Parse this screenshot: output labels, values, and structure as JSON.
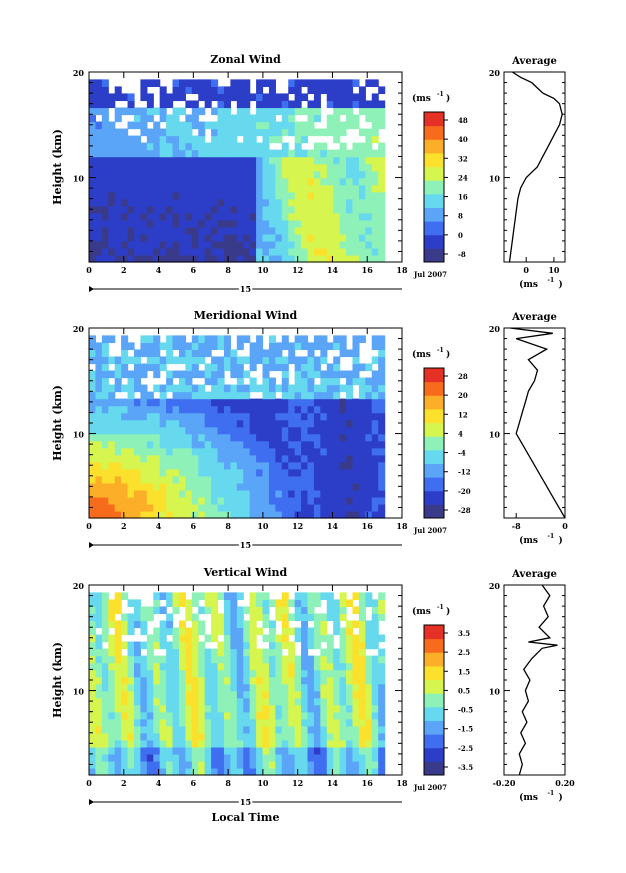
{
  "chart_data": [
    {
      "type": "heatmap",
      "title": "Zonal Wind",
      "ylabel": "Height (km)",
      "unit_label": "(ms",
      "unit_exp": "-1",
      "xlim": [
        0,
        18
      ],
      "ylim": [
        2,
        20
      ],
      "x_ticks": [
        "0",
        "2",
        "4",
        "6",
        "8",
        "10",
        "12",
        "14",
        "16",
        "18"
      ],
      "y_ticks": [
        "10",
        "20"
      ],
      "day_label": "15",
      "date_label": "Jul 2007",
      "colorbar_ticks": [
        "48",
        "40",
        "32",
        "24",
        "16",
        "8",
        "0",
        "-8"
      ],
      "colorbar_range": [
        -8,
        52
      ],
      "contour_level": 0,
      "profile": {
        "title": "Average",
        "x_ticks": [
          "0",
          "10"
        ],
        "xlim": [
          -8,
          14
        ],
        "y_ticks": [
          "10",
          "20"
        ],
        "xlabel": "(ms",
        "xlabel_exp": "-1",
        "points": [
          [
            -6,
            2
          ],
          [
            -5.5,
            3
          ],
          [
            -5,
            4
          ],
          [
            -4.5,
            5
          ],
          [
            -4,
            6
          ],
          [
            -3.5,
            7
          ],
          [
            -3,
            8
          ],
          [
            -2,
            9
          ],
          [
            0,
            10
          ],
          [
            2,
            10.5
          ],
          [
            4,
            11
          ],
          [
            6,
            12
          ],
          [
            8,
            13
          ],
          [
            10,
            14
          ],
          [
            12,
            15
          ],
          [
            13,
            16
          ],
          [
            12,
            17
          ],
          [
            10,
            17.5
          ],
          [
            6,
            18
          ],
          [
            2,
            19
          ],
          [
            -2,
            19.5
          ],
          [
            -5,
            20
          ]
        ]
      }
    },
    {
      "type": "heatmap",
      "title": "Meridional Wind",
      "ylabel": "Height (km)",
      "unit_label": "(ms",
      "unit_exp": "-1",
      "xlim": [
        0,
        18
      ],
      "ylim": [
        2,
        20
      ],
      "x_ticks": [
        "0",
        "2",
        "4",
        "6",
        "8",
        "10",
        "12",
        "14",
        "16",
        "18"
      ],
      "y_ticks": [
        "10",
        "20"
      ],
      "day_label": "15",
      "date_label": "Jul 2007",
      "colorbar_ticks": [
        "28",
        "20",
        "12",
        "4",
        "-4",
        "-12",
        "-20",
        "-28"
      ],
      "colorbar_range": [
        -28,
        28
      ],
      "contour_level": 0,
      "profile": {
        "title": "Average",
        "x_ticks": [
          "-8",
          "0"
        ],
        "xlim": [
          -10,
          0
        ],
        "y_ticks": [
          "10",
          "20"
        ],
        "xlabel": "(ms",
        "xlabel_exp": "-1",
        "points": [
          [
            0,
            2
          ],
          [
            -1,
            3
          ],
          [
            -2,
            4
          ],
          [
            -3,
            5
          ],
          [
            -4,
            6
          ],
          [
            -5,
            7
          ],
          [
            -6,
            8
          ],
          [
            -7,
            9
          ],
          [
            -8,
            10
          ],
          [
            -7.5,
            11
          ],
          [
            -7,
            12
          ],
          [
            -6.5,
            13
          ],
          [
            -6,
            14
          ],
          [
            -5,
            15
          ],
          [
            -4.5,
            16
          ],
          [
            -6,
            17
          ],
          [
            -3,
            18
          ],
          [
            -8,
            19
          ],
          [
            -2,
            19.5
          ],
          [
            -9,
            20
          ]
        ]
      }
    },
    {
      "type": "heatmap",
      "title": "Vertical Wind",
      "ylabel": "Height (km)",
      "xlabel": "Local Time",
      "unit_label": "(ms",
      "unit_exp": "-1",
      "xlim": [
        0,
        18
      ],
      "ylim": [
        2,
        20
      ],
      "x_ticks": [
        "0",
        "2",
        "4",
        "6",
        "8",
        "10",
        "12",
        "14",
        "16",
        "18"
      ],
      "y_ticks": [
        "10",
        "20"
      ],
      "day_label": "15",
      "date_label": "Jul 2007",
      "colorbar_ticks": [
        "3.5",
        "2.5",
        "1.5",
        "0.5",
        "-0.5",
        "-1.5",
        "-2.5",
        "-3.5"
      ],
      "colorbar_range": [
        -4,
        4
      ],
      "profile": {
        "title": "Average",
        "x_ticks": [
          "-0.20",
          "0.20"
        ],
        "xlim": [
          -0.2,
          0.2
        ],
        "y_ticks": [
          "10",
          "20"
        ],
        "xlabel": "(ms",
        "xlabel_exp": "-1",
        "points": [
          [
            -0.1,
            2
          ],
          [
            -0.08,
            3
          ],
          [
            -0.1,
            4
          ],
          [
            -0.06,
            5
          ],
          [
            -0.09,
            6
          ],
          [
            -0.05,
            7
          ],
          [
            -0.08,
            8
          ],
          [
            -0.04,
            9
          ],
          [
            -0.06,
            10
          ],
          [
            -0.03,
            11
          ],
          [
            -0.07,
            12
          ],
          [
            -0.02,
            13
          ],
          [
            0.05,
            14
          ],
          [
            0.15,
            14.3
          ],
          [
            -0.04,
            14.6
          ],
          [
            0.1,
            15
          ],
          [
            0.03,
            16
          ],
          [
            0.09,
            17
          ],
          [
            0.06,
            18
          ],
          [
            0.1,
            19
          ],
          [
            0.05,
            20
          ]
        ]
      }
    }
  ],
  "colors": {
    "colorbar_stops": [
      "#3a3a8a",
      "#2c3ec7",
      "#3f6ff0",
      "#5aa5f7",
      "#66d9ee",
      "#8ef2b8",
      "#d6f54f",
      "#fbe12c",
      "#fbae27",
      "#f76b1c",
      "#e53125"
    ]
  }
}
